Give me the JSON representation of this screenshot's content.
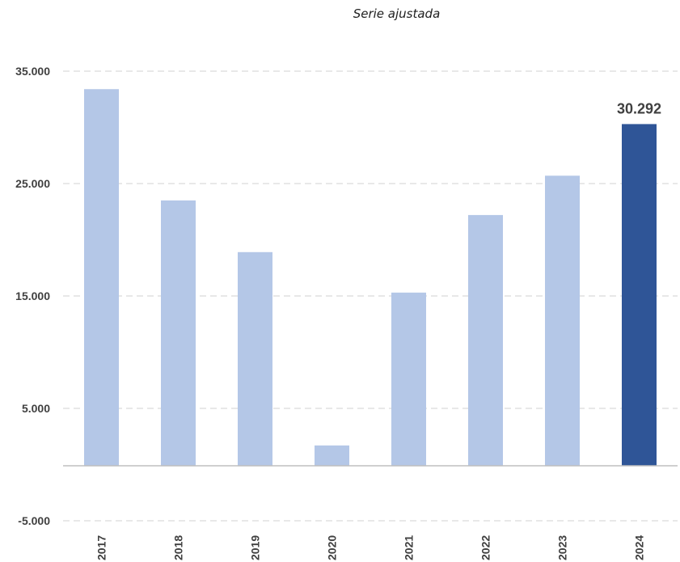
{
  "chart_data": {
    "type": "bar",
    "title": "Serie ajustada",
    "xlabel": "",
    "ylabel": "",
    "categories": [
      "2017",
      "2018",
      "2019",
      "2020",
      "2021",
      "2022",
      "2023",
      "2024"
    ],
    "values": [
      33400,
      23500,
      18900,
      1700,
      15300,
      22200,
      25700,
      30292
    ],
    "highlight": {
      "category": "2024",
      "label": "30.292"
    },
    "ylim": [
      -5000,
      35000
    ],
    "yticks": [
      -5000,
      5000,
      15000,
      25000,
      35000
    ],
    "ytick_labels": [
      "-5.000",
      "5.000",
      "15.000",
      "25.000",
      "35.000"
    ],
    "grid": true,
    "colors": {
      "bar": "#b4c7e7",
      "highlight_bar": "#2f5597",
      "grid": "#d9d9d9",
      "axis": "#bfbfbf",
      "tick_text": "#404040",
      "label_text": "#404040"
    }
  }
}
